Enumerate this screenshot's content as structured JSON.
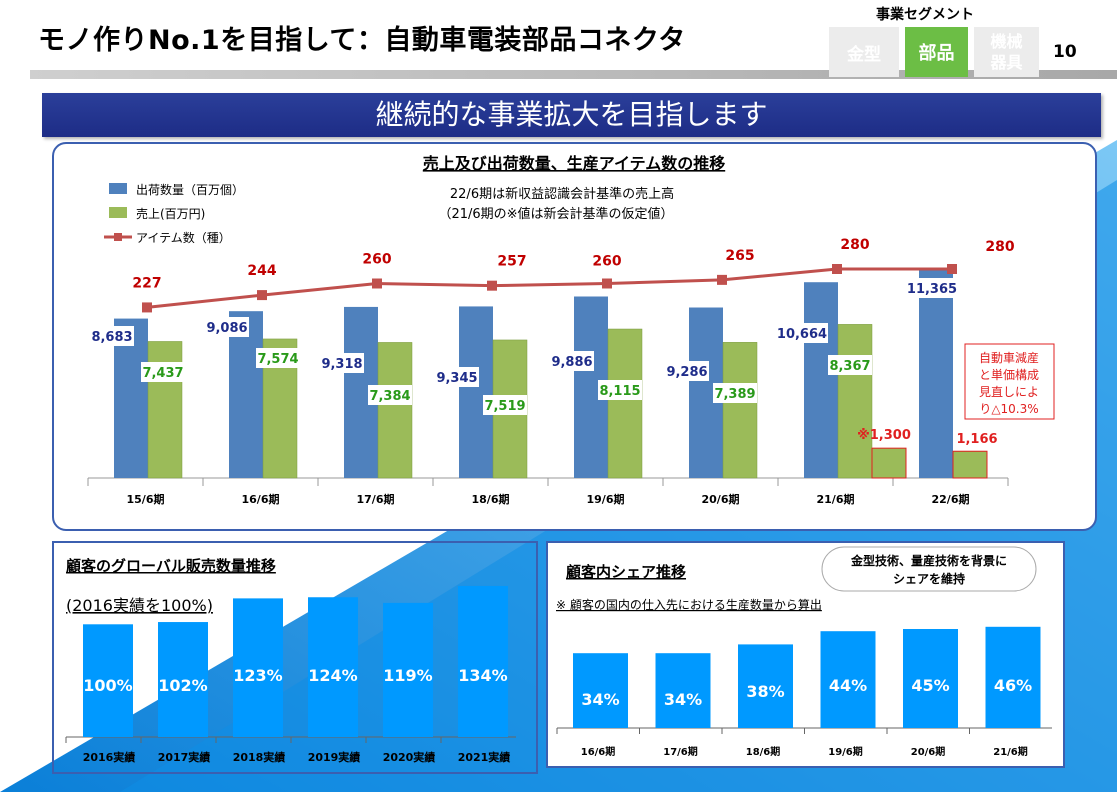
{
  "header": {
    "title": "モノ作りNo.1を目指して：自動車電装部品コネクタ",
    "segment_label": "事業セグメント",
    "segments": [
      "金型",
      "部品"
    ],
    "segment_machine_lines": [
      "機械",
      "器具"
    ],
    "page_number": "10"
  },
  "banner": "継続的な事業拡大を目指します",
  "colors": {
    "blue_bar": "#4f81bd",
    "green_bar": "#9bbb59",
    "red_line": "#c0504d",
    "navy": "#1f2d8a",
    "sky": "#0099ff"
  },
  "chart_data": [
    {
      "type": "bar",
      "title": "売上及び出荷数量、生産アイテム数の推移",
      "categories": [
        "15/6期",
        "16/6期",
        "17/6期",
        "18/6期",
        "19/6期",
        "20/6期",
        "21/6期",
        "22/6期"
      ],
      "series": [
        {
          "name": "出荷数量（百万個）",
          "type": "bar",
          "values": [
            8683,
            9086,
            9318,
            9345,
            9886,
            9286,
            10664,
            11365
          ],
          "labels": [
            "8,683",
            "9,086",
            "9,318",
            "9,345",
            "9,886",
            "9,286",
            "10,664",
            "11,365"
          ]
        },
        {
          "name": "売上(百万円)",
          "type": "bar",
          "values": [
            7437,
            7574,
            7384,
            7519,
            8115,
            7389,
            8367,
            null
          ],
          "labels": [
            "7,437",
            "7,574",
            "7,384",
            "7,519",
            "8,115",
            "7,389",
            "8,367",
            ""
          ]
        },
        {
          "name": "",
          "type": "bar",
          "values": [
            null,
            null,
            null,
            null,
            null,
            null,
            1300,
            1166
          ],
          "labels": [
            "",
            "",
            "",
            "",
            "",
            "",
            "※1,300",
            "1,166"
          ]
        },
        {
          "name": "アイテム数（種）",
          "type": "line",
          "values": [
            227,
            244,
            260,
            257,
            260,
            265,
            280,
            280
          ],
          "labels": [
            "227",
            "244",
            "260",
            "257",
            "260",
            "265",
            "280",
            "280"
          ]
        }
      ],
      "notes": [
        "22/6期は新収益認識会計基準の売上高",
        "（21/6期の※値は新会計基準の仮定値）"
      ],
      "annotation": [
        "自動車減産",
        "と単価構成",
        "見直しによ",
        "り△10.3%"
      ],
      "legend_position": "top-left",
      "grid": false
    },
    {
      "type": "bar",
      "title": "顧客のグローバル販売数量推移",
      "subtitle": "(2016実績を100%)",
      "categories": [
        "2016実績",
        "2017実績",
        "2018実績",
        "2019実績",
        "2020実績",
        "2021実績"
      ],
      "values": [
        100,
        102,
        123,
        124,
        119,
        134
      ],
      "labels": [
        "100%",
        "102%",
        "123%",
        "124%",
        "119%",
        "134%"
      ],
      "grid": false
    },
    {
      "type": "bar",
      "title": "顧客内シェア推移",
      "note": "※ 顧客の国内の仕入先における生産数量から算出",
      "callout": [
        "金型技術、量産技術を背景に",
        "シェアを維持"
      ],
      "categories": [
        "16/6期",
        "17/6期",
        "18/6期",
        "19/6期",
        "20/6期",
        "21/6期"
      ],
      "values": [
        34,
        34,
        38,
        44,
        45,
        46
      ],
      "labels": [
        "34%",
        "34%",
        "38%",
        "44%",
        "45%",
        "46%"
      ],
      "grid": false
    }
  ]
}
